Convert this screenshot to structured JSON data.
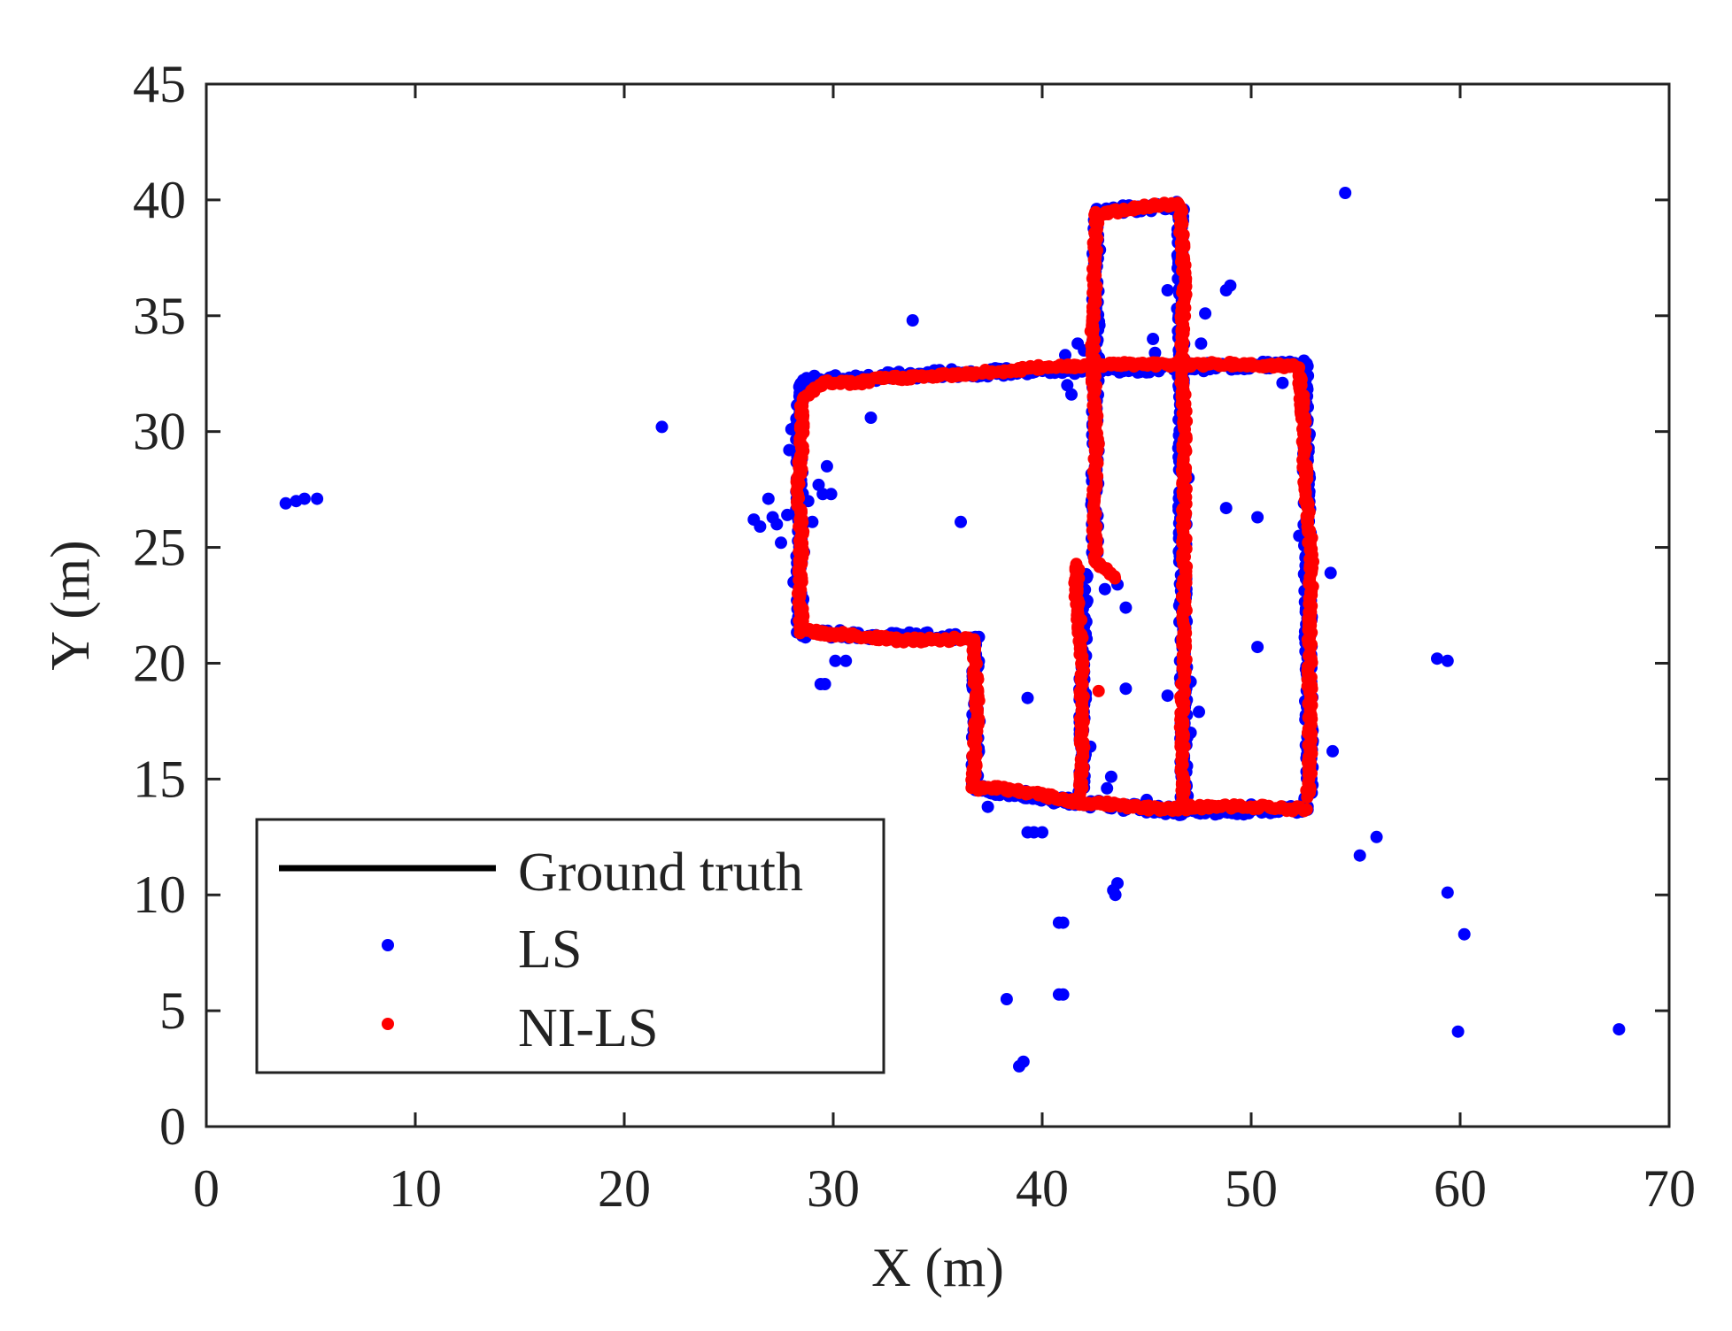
{
  "chart_data": {
    "type": "scatter",
    "title": "",
    "xlabel": "X (m)",
    "ylabel": "Y (m)",
    "xlim": [
      0,
      70
    ],
    "ylim": [
      0,
      45
    ],
    "xticks": [
      "0",
      "10",
      "20",
      "30",
      "40",
      "50",
      "60",
      "70"
    ],
    "yticks": [
      "0",
      "5",
      "10",
      "15",
      "20",
      "25",
      "30",
      "35",
      "40",
      "45"
    ],
    "grid": false,
    "legend_position": "bottom-left",
    "series": [
      {
        "name": "Ground truth",
        "kind": "line",
        "color": "#000000",
        "paths": [
          [
            [
              28.4,
              21.3
            ],
            [
              28.4,
              32.2
            ],
            [
              35,
              32.5
            ],
            [
              52.6,
              32.9
            ],
            [
              52.8,
              14.4
            ],
            [
              52.5,
              13.7
            ],
            [
              46.8,
              13.6
            ],
            [
              42.5,
              13.9
            ],
            [
              36.8,
              14.6
            ],
            [
              36.8,
              21.1
            ],
            [
              28.4,
              21.3
            ]
          ],
          [
            [
              42.6,
              39.5
            ],
            [
              46.6,
              39.8
            ],
            [
              46.8,
              13.6
            ]
          ],
          [
            [
              42.6,
              39.5
            ],
            [
              42.5,
              24.5
            ]
          ],
          [
            [
              42.0,
              24.0
            ],
            [
              41.9,
              14.5
            ]
          ]
        ]
      },
      {
        "name": "LS",
        "kind": "scatter",
        "color": "#0000ff",
        "points": [
          [
            3.8,
            26.9
          ],
          [
            4.3,
            27.0
          ],
          [
            4.7,
            27.1
          ],
          [
            5.3,
            27.1
          ],
          [
            21.8,
            30.2
          ],
          [
            33.8,
            34.8
          ],
          [
            31.8,
            30.6
          ],
          [
            36.1,
            26.1
          ],
          [
            26.2,
            26.2
          ],
          [
            26.5,
            25.9
          ],
          [
            26.9,
            27.1
          ],
          [
            27.1,
            26.3
          ],
          [
            27.3,
            26.0
          ],
          [
            27.5,
            25.2
          ],
          [
            27.8,
            26.4
          ],
          [
            27.9,
            29.2
          ],
          [
            28.1,
            23.5
          ],
          [
            28.0,
            30.1
          ],
          [
            28.6,
            24.8
          ],
          [
            28.8,
            27.0
          ],
          [
            29.0,
            26.1
          ],
          [
            29.3,
            27.7
          ],
          [
            29.7,
            28.5
          ],
          [
            29.5,
            27.3
          ],
          [
            29.9,
            27.3
          ],
          [
            29.4,
            19.1
          ],
          [
            29.6,
            19.1
          ],
          [
            30.1,
            20.1
          ],
          [
            30.6,
            20.1
          ],
          [
            32.8,
            21.3
          ],
          [
            39.3,
            18.5
          ],
          [
            39.3,
            12.7
          ],
          [
            39.6,
            12.7
          ],
          [
            40.0,
            12.7
          ],
          [
            43.4,
            10.2
          ],
          [
            43.6,
            10.5
          ],
          [
            43.5,
            10.0
          ],
          [
            40.8,
            8.8
          ],
          [
            41.0,
            8.8
          ],
          [
            40.8,
            5.7
          ],
          [
            41.0,
            5.7
          ],
          [
            38.3,
            5.5
          ],
          [
            38.9,
            2.6
          ],
          [
            39.1,
            2.8
          ],
          [
            44.0,
            18.9
          ],
          [
            46.0,
            36.1
          ],
          [
            47.8,
            35.1
          ],
          [
            48.8,
            36.1
          ],
          [
            49.0,
            36.3
          ],
          [
            47.6,
            33.8
          ],
          [
            48.8,
            26.7
          ],
          [
            50.3,
            26.3
          ],
          [
            50.3,
            20.7
          ],
          [
            47.1,
            19.2
          ],
          [
            47.5,
            17.9
          ],
          [
            46.0,
            18.6
          ],
          [
            41.2,
            32.0
          ],
          [
            41.4,
            31.6
          ],
          [
            41.7,
            33.8
          ],
          [
            41.1,
            33.3
          ],
          [
            42.0,
            33.5
          ],
          [
            43.0,
            23.2
          ],
          [
            43.6,
            23.4
          ],
          [
            44.0,
            22.4
          ],
          [
            43.1,
            14.6
          ],
          [
            43.3,
            15.1
          ],
          [
            44.2,
            13.8
          ],
          [
            45.0,
            14.1
          ],
          [
            50.8,
            33.0
          ],
          [
            51.5,
            32.1
          ],
          [
            53.8,
            23.9
          ],
          [
            52.3,
            25.5
          ],
          [
            53.9,
            16.2
          ],
          [
            54.5,
            40.3
          ],
          [
            55.2,
            11.7
          ],
          [
            56.0,
            12.5
          ],
          [
            58.9,
            20.2
          ],
          [
            59.4,
            20.1
          ],
          [
            59.4,
            10.1
          ],
          [
            60.2,
            8.3
          ],
          [
            59.9,
            4.1
          ],
          [
            67.6,
            4.2
          ],
          [
            37.4,
            13.8
          ],
          [
            38.8,
            14.4
          ],
          [
            40.5,
            14.2
          ],
          [
            41.3,
            13.9
          ],
          [
            45.3,
            34.0
          ],
          [
            45.4,
            33.4
          ],
          [
            47.1,
            17.0
          ],
          [
            46.9,
            23.2
          ],
          [
            46.6,
            28.3
          ],
          [
            47.0,
            28.0
          ],
          [
            36.8,
            16.0
          ],
          [
            37.0,
            17.5
          ],
          [
            36.8,
            19.2
          ],
          [
            28.5,
            22.5
          ],
          [
            28.3,
            27.8
          ],
          [
            28.4,
            30.8
          ],
          [
            28.5,
            31.6
          ],
          [
            29.0,
            32.2
          ],
          [
            30.0,
            32.1
          ],
          [
            33.0,
            32.4
          ],
          [
            34.0,
            32.3
          ],
          [
            38.0,
            32.7
          ],
          [
            41.0,
            32.8
          ],
          [
            43.8,
            32.9
          ],
          [
            45.0,
            32.9
          ],
          [
            46.0,
            32.9
          ],
          [
            42.6,
            38.0
          ],
          [
            42.5,
            36.6
          ],
          [
            42.6,
            31.0
          ],
          [
            42.7,
            29.5
          ],
          [
            42.5,
            26.0
          ],
          [
            42.6,
            27.7
          ],
          [
            46.7,
            37.8
          ],
          [
            46.6,
            36.5
          ],
          [
            46.8,
            30.0
          ],
          [
            46.9,
            26.0
          ],
          [
            52.7,
            30.5
          ],
          [
            52.8,
            28.0
          ],
          [
            52.9,
            22.0
          ],
          [
            52.8,
            19.0
          ],
          [
            52.7,
            16.5
          ],
          [
            50.0,
            13.9
          ],
          [
            51.0,
            13.7
          ],
          [
            49.0,
            13.8
          ],
          [
            44.5,
            13.9
          ],
          [
            42.0,
            15.5
          ],
          [
            42.3,
            16.4
          ],
          [
            41.9,
            17.2
          ]
        ]
      },
      {
        "name": "NI-LS",
        "kind": "scatter",
        "color": "#ff0000",
        "paths": [
          [
            [
              28.5,
              21.4
            ],
            [
              28.4,
              23.0
            ],
            [
              28.5,
              25.5
            ],
            [
              28.3,
              27.5
            ],
            [
              28.5,
              29.5
            ],
            [
              28.5,
              31.3
            ],
            [
              29.5,
              32.1
            ],
            [
              31.0,
              32.1
            ],
            [
              32.5,
              32.3
            ],
            [
              35.0,
              32.4
            ],
            [
              38.0,
              32.6
            ],
            [
              40.5,
              32.8
            ],
            [
              42.7,
              32.9
            ],
            [
              45.0,
              32.9
            ],
            [
              47.0,
              32.9
            ],
            [
              49.5,
              32.9
            ],
            [
              52.2,
              32.8
            ]
          ],
          [
            [
              52.3,
              32.8
            ],
            [
              52.5,
              30.5
            ],
            [
              52.6,
              27.5
            ],
            [
              52.9,
              24.5
            ],
            [
              52.8,
              21.5
            ],
            [
              52.8,
              18.5
            ],
            [
              52.8,
              15.5
            ],
            [
              52.7,
              14.3
            ]
          ],
          [
            [
              52.6,
              13.7
            ],
            [
              50.0,
              13.8
            ],
            [
              47.5,
              13.8
            ],
            [
              45.5,
              13.7
            ],
            [
              43.5,
              13.9
            ],
            [
              41.8,
              14.0
            ],
            [
              40.0,
              14.3
            ],
            [
              38.0,
              14.6
            ],
            [
              36.8,
              14.6
            ]
          ],
          [
            [
              36.7,
              14.6
            ],
            [
              36.8,
              16.5
            ],
            [
              36.9,
              18.0
            ],
            [
              36.8,
              19.5
            ],
            [
              36.7,
              21.1
            ]
          ],
          [
            [
              36.6,
              21.1
            ],
            [
              35.0,
              21.0
            ],
            [
              33.0,
              21.0
            ],
            [
              31.0,
              21.2
            ],
            [
              29.5,
              21.3
            ],
            [
              28.6,
              21.4
            ]
          ],
          [
            [
              42.7,
              39.4
            ],
            [
              44.2,
              39.6
            ],
            [
              45.5,
              39.8
            ],
            [
              46.5,
              39.8
            ]
          ],
          [
            [
              42.6,
              39.4
            ],
            [
              42.5,
              37.0
            ],
            [
              42.5,
              35.5
            ],
            [
              42.4,
              33.8
            ],
            [
              42.5,
              31.5
            ],
            [
              42.6,
              29.5
            ],
            [
              42.5,
              27.5
            ],
            [
              42.5,
              25.8
            ],
            [
              42.6,
              24.4
            ],
            [
              43.0,
              24.0
            ],
            [
              43.5,
              23.7
            ]
          ],
          [
            [
              46.6,
              39.8
            ],
            [
              46.7,
              38.0
            ],
            [
              46.8,
              36.0
            ],
            [
              46.7,
              34.5
            ],
            [
              46.7,
              32.5
            ],
            [
              46.8,
              30.5
            ],
            [
              46.8,
              28.0
            ],
            [
              46.8,
              25.5
            ],
            [
              46.8,
              23.0
            ],
            [
              46.8,
              20.5
            ],
            [
              46.7,
              18.0
            ],
            [
              46.7,
              16.0
            ],
            [
              46.8,
              13.7
            ]
          ],
          [
            [
              41.7,
              24.2
            ],
            [
              41.6,
              23.0
            ],
            [
              41.8,
              21.5
            ],
            [
              41.9,
              19.5
            ],
            [
              41.9,
              17.5
            ],
            [
              41.9,
              15.5
            ],
            [
              41.8,
              14.3
            ]
          ]
        ],
        "points": [
          [
            42.7,
            18.8
          ],
          [
            52.8,
            24.1
          ]
        ]
      }
    ]
  }
}
